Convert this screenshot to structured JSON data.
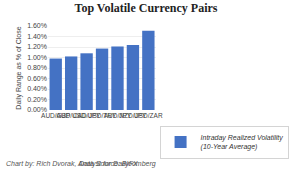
{
  "chart_data": {
    "type": "bar",
    "title": "Top Volatile Currency Pairs",
    "categories": [
      "AUD/GBP",
      "AUD/USD",
      "CAD/JPY",
      "USD/TRY",
      "AUD/JPY",
      "NZD/JPY",
      "USD/ZAR"
    ],
    "series": [
      {
        "name": "Intraday Realized Volatility\n(10-Year Average)",
        "color": "#4472C4",
        "values": [
          0.0098,
          0.0102,
          0.0108,
          0.0117,
          0.0121,
          0.0124,
          0.0151
        ]
      }
    ],
    "ylabel": "Daily Range as % of Close",
    "ylim": [
      0,
      0.016
    ],
    "yticks": [
      {
        "value": 0.0,
        "label": "0.00%"
      },
      {
        "value": 0.002,
        "label": "0.20%"
      },
      {
        "value": 0.004,
        "label": "0.40%"
      },
      {
        "value": 0.006,
        "label": "0.60%"
      },
      {
        "value": 0.008,
        "label": "0.80%"
      },
      {
        "value": 0.01,
        "label": "1.00%"
      },
      {
        "value": 0.012,
        "label": "1.20%"
      },
      {
        "value": 0.014,
        "label": "1.40%"
      },
      {
        "value": 0.016,
        "label": "1.60%"
      }
    ],
    "grid": true,
    "legend": "lower right",
    "annotations": [
      "Chart by: Rich Dvorak, Analyst for DailyFX",
      "Data Source: Bloomberg"
    ]
  }
}
